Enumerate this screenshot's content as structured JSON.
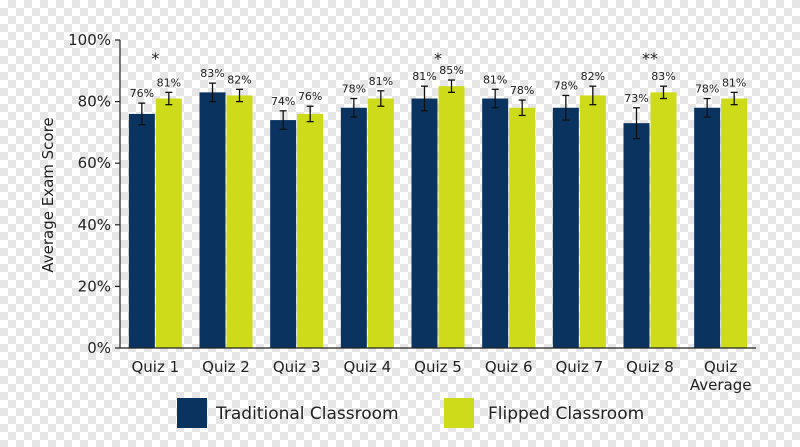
{
  "chart_data": {
    "type": "bar",
    "ylabel": "Average Exam Score",
    "ylim": [
      0,
      100
    ],
    "yticks": [
      "0%",
      "20%",
      "40%",
      "60%",
      "80%",
      "100%"
    ],
    "ytick_values": [
      0,
      20,
      40,
      60,
      80,
      100
    ],
    "categories": [
      [
        "Quiz 1"
      ],
      [
        "Quiz 2"
      ],
      [
        "Quiz 3"
      ],
      [
        "Quiz 4"
      ],
      [
        "Quiz 5"
      ],
      [
        "Quiz 6"
      ],
      [
        "Quiz 7"
      ],
      [
        "Quiz 8"
      ],
      [
        "Quiz",
        "Average"
      ]
    ],
    "series": [
      {
        "name": "Traditional Classroom",
        "color": "#0b3360",
        "values": [
          76,
          83,
          74,
          78,
          81,
          81,
          78,
          73,
          78
        ],
        "labels": [
          "76%",
          "83%",
          "74%",
          "78%",
          "81%",
          "81%",
          "78%",
          "73%",
          "78%"
        ],
        "error": [
          3.5,
          3,
          3,
          3,
          4,
          3,
          4,
          5,
          3
        ]
      },
      {
        "name": "Flipped Classroom",
        "color": "#cedb1a",
        "values": [
          81,
          82,
          76,
          81,
          85,
          78,
          82,
          83,
          81
        ],
        "labels": [
          "81%",
          "82%",
          "76%",
          "81%",
          "85%",
          "78%",
          "82%",
          "83%",
          "81%"
        ],
        "error": [
          2,
          2,
          2.5,
          2.5,
          2,
          2.5,
          3,
          2,
          2
        ]
      }
    ],
    "annotations": [
      {
        "category_index": 0,
        "text": "*"
      },
      {
        "category_index": 4,
        "text": "*"
      },
      {
        "category_index": 7,
        "text": "**"
      }
    ],
    "legend_position": "bottom",
    "grid": false
  }
}
